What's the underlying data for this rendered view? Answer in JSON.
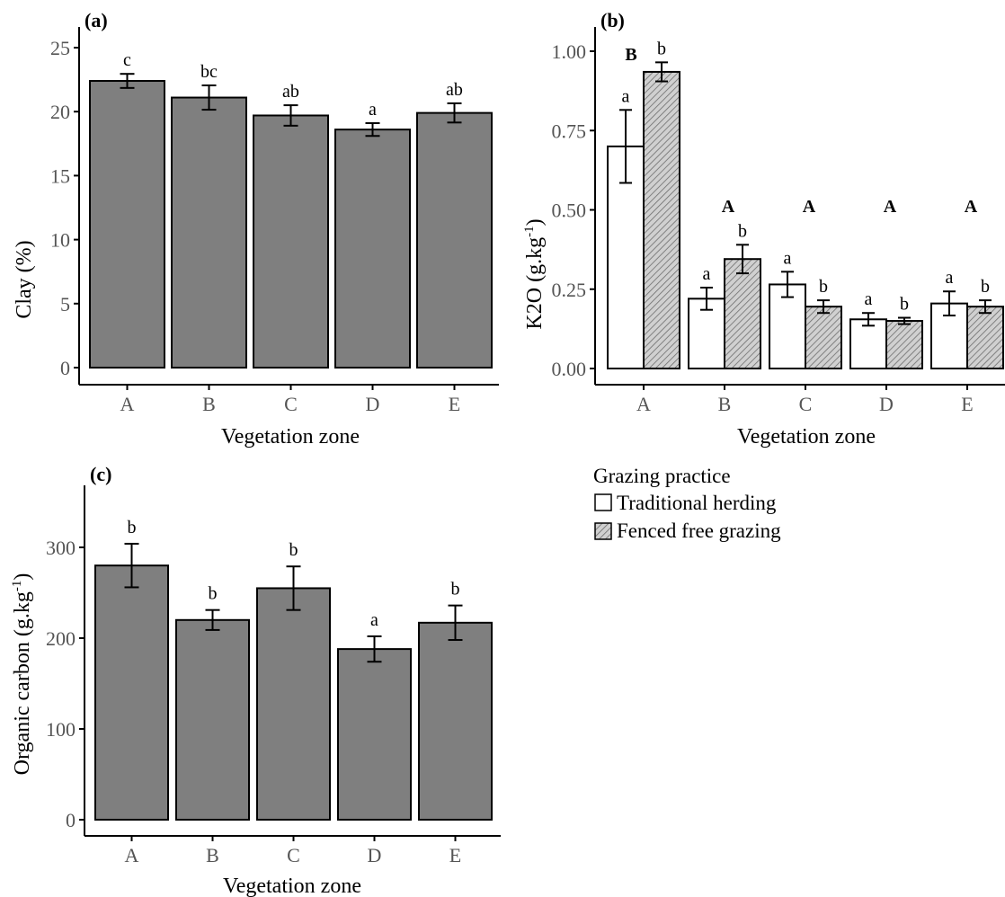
{
  "chart_data": [
    {
      "panel": "(a)",
      "type": "bar",
      "categories": [
        "A",
        "B",
        "C",
        "D",
        "E"
      ],
      "values": [
        22.4,
        21.1,
        19.7,
        18.6,
        19.9
      ],
      "errors": [
        0.55,
        0.95,
        0.8,
        0.5,
        0.75
      ],
      "letters": [
        "c",
        "bc",
        "ab",
        "a",
        "ab"
      ],
      "xlabel": "Vegetation zone",
      "ylabel": "Clay (%)",
      "ylim": [
        0,
        25
      ],
      "yticks": [
        0,
        5,
        10,
        15,
        20,
        25
      ],
      "bar_color": "#7f7f7f",
      "grid": false
    },
    {
      "panel": "(b)",
      "type": "bar",
      "categories": [
        "A",
        "B",
        "C",
        "D",
        "E"
      ],
      "series": [
        {
          "name": "Traditional herding",
          "values": [
            0.7,
            0.22,
            0.265,
            0.155,
            0.205
          ],
          "errors": [
            0.115,
            0.035,
            0.04,
            0.02,
            0.038
          ],
          "letters": [
            "a",
            "a",
            "a",
            "a",
            "a"
          ]
        },
        {
          "name": "Fenced free grazing",
          "values": [
            0.935,
            0.345,
            0.195,
            0.15,
            0.195
          ],
          "errors": [
            0.03,
            0.045,
            0.02,
            0.01,
            0.02
          ],
          "letters": [
            "b",
            "b",
            "b",
            "b",
            "b"
          ]
        }
      ],
      "group_letters": [
        "B",
        "A",
        "A",
        "A",
        "A"
      ],
      "xlabel": "Vegetation zone",
      "ylabel_main": "K2O (g.kg",
      "ylabel_sup": "-1",
      "ylabel_end": ")",
      "ylim": [
        0,
        1.0
      ],
      "yticks": [
        "0.00",
        "0.25",
        "0.50",
        "0.75",
        "1.00"
      ],
      "grid": false
    },
    {
      "panel": "(c)",
      "type": "bar",
      "categories": [
        "A",
        "B",
        "C",
        "D",
        "E"
      ],
      "values": [
        280,
        220,
        255,
        188,
        217
      ],
      "errors": [
        24,
        11,
        24,
        14,
        19
      ],
      "letters": [
        "b",
        "b",
        "b",
        "a",
        "b"
      ],
      "xlabel": "Vegetation zone",
      "ylabel_main": "Organic carbon (g.kg",
      "ylabel_sup": "-1",
      "ylabel_end": ")",
      "ylim": [
        0,
        300
      ],
      "yticks": [
        0,
        100,
        200,
        300
      ],
      "bar_color": "#7f7f7f",
      "grid": false
    }
  ],
  "legend": {
    "title": "Grazing practice",
    "items": [
      "Traditional herding",
      "Fenced free grazing"
    ],
    "placement": "bottom-right"
  }
}
